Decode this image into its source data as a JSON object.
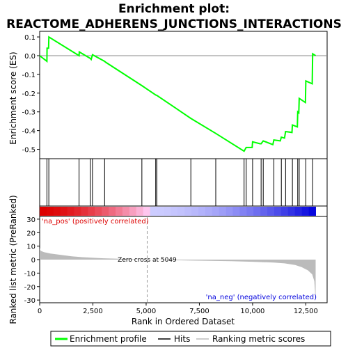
{
  "title_line1": "Enrichment plot:",
  "title_line2": "REACTOME_ADHERENS_JUNCTIONS_INTERACTIONS",
  "chart_data": {
    "type": "line",
    "top_panel": {
      "ylabel": "Enrichment score (ES)",
      "ylim": [
        -0.55,
        0.13
      ],
      "yticks": [
        0.1,
        0.0,
        -0.1,
        -0.2,
        -0.3,
        -0.4,
        -0.5
      ],
      "ytick_labels": [
        "0.1",
        "0.0",
        "-0.1",
        "-0.2",
        "-0.3",
        "-0.4",
        "-0.5"
      ],
      "series_name": "Enrichment profile",
      "color": "#00ff00",
      "es_points": [
        [
          0,
          0.0
        ],
        [
          340,
          -0.03
        ],
        [
          345,
          0.04
        ],
        [
          420,
          0.04
        ],
        [
          430,
          0.1
        ],
        [
          1850,
          0.0
        ],
        [
          1860,
          0.02
        ],
        [
          2380,
          -0.015
        ],
        [
          2420,
          -0.02
        ],
        [
          2480,
          0.005
        ],
        [
          3050,
          -0.03
        ],
        [
          3100,
          -0.035
        ],
        [
          4800,
          -0.16
        ],
        [
          5450,
          -0.21
        ],
        [
          5500,
          -0.212
        ],
        [
          7100,
          -0.335
        ],
        [
          8270,
          -0.415
        ],
        [
          9600,
          -0.51
        ],
        [
          9700,
          -0.49
        ],
        [
          9980,
          -0.49
        ],
        [
          10000,
          -0.46
        ],
        [
          10350,
          -0.47
        ],
        [
          10400,
          -0.47
        ],
        [
          10500,
          -0.455
        ],
        [
          10950,
          -0.475
        ],
        [
          11000,
          -0.45
        ],
        [
          11300,
          -0.455
        ],
        [
          11350,
          -0.435
        ],
        [
          11500,
          -0.44
        ],
        [
          11550,
          -0.405
        ],
        [
          11850,
          -0.41
        ],
        [
          11870,
          -0.37
        ],
        [
          12100,
          -0.38
        ],
        [
          12120,
          -0.3
        ],
        [
          12170,
          -0.305
        ],
        [
          12190,
          -0.228
        ],
        [
          12480,
          -0.25
        ],
        [
          12500,
          -0.135
        ],
        [
          12800,
          -0.15
        ],
        [
          12820,
          0.01
        ],
        [
          12960,
          0.0
        ]
      ]
    },
    "hits": [
      340,
      430,
      1850,
      2380,
      2480,
      3050,
      4800,
      5450,
      5500,
      7100,
      8270,
      9600,
      9700,
      10000,
      10400,
      10500,
      11000,
      11350,
      11550,
      11870,
      12120,
      12190,
      12500,
      12820
    ],
    "bottom_panel": {
      "ylabel": "Ranked list metric (PreRanked)",
      "xlabel": "Rank in Ordered Dataset",
      "ylim": [
        -32,
        32
      ],
      "yticks": [
        30,
        20,
        10,
        0,
        -10,
        -20,
        -30
      ],
      "ytick_labels": [
        "30",
        "20",
        "10",
        "0",
        "-10",
        "-20",
        "-30"
      ],
      "xlim": [
        0,
        13500
      ],
      "xticks": [
        0,
        2500,
        5000,
        7500,
        10000,
        12500
      ],
      "xtick_labels": [
        "0",
        "2,500",
        "5,000",
        "7,500",
        "10,000",
        "12,500"
      ],
      "metric_profile": [
        [
          0,
          8.5
        ],
        [
          50,
          6.5
        ],
        [
          200,
          5.5
        ],
        [
          500,
          4.5
        ],
        [
          1000,
          3.5
        ],
        [
          1500,
          2.5
        ],
        [
          2000,
          1.8
        ],
        [
          3000,
          1.0
        ],
        [
          4000,
          0.5
        ],
        [
          5049,
          0.0
        ],
        [
          6000,
          -0.3
        ],
        [
          7000,
          -0.6
        ],
        [
          8000,
          -0.9
        ],
        [
          9000,
          -1.2
        ],
        [
          10000,
          -1.6
        ],
        [
          11000,
          -2.2
        ],
        [
          11500,
          -2.8
        ],
        [
          12000,
          -4.0
        ],
        [
          12300,
          -5.5
        ],
        [
          12600,
          -8.0
        ],
        [
          12800,
          -11.0
        ],
        [
          12900,
          -16.0
        ],
        [
          12960,
          -30.0
        ]
      ],
      "zero_cross_label": "Zero cross at 5049",
      "zero_cross_rank": 5049,
      "pos_label": "'na_pos' (positively correlated)",
      "neg_label": "'na_neg' (negatively correlated)",
      "pos_color": "#dd0000",
      "neg_color": "#0000dd"
    },
    "legend": [
      {
        "label": "Enrichment profile",
        "color": "#00ff00"
      },
      {
        "label": "Hits",
        "color": "#000000"
      },
      {
        "label": "Ranking metric scores",
        "color": "#bbbbbb"
      }
    ]
  }
}
